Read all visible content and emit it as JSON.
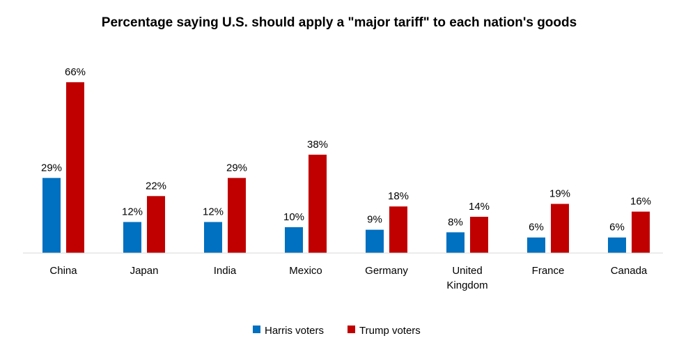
{
  "chart_data": {
    "type": "bar",
    "title": "Percentage saying U.S. should apply a \"major tariff\" to each nation's goods",
    "categories": [
      "China",
      "Japan",
      "India",
      "Mexico",
      "Germany",
      "United Kingdom",
      "France",
      "Canada"
    ],
    "category_lines": [
      [
        "China"
      ],
      [
        "Japan"
      ],
      [
        "India"
      ],
      [
        "Mexico"
      ],
      [
        "Germany"
      ],
      [
        "United",
        "Kingdom"
      ],
      [
        "France"
      ],
      [
        "Canada"
      ]
    ],
    "series": [
      {
        "name": "Harris voters",
        "color": "#0070C0",
        "values": [
          29,
          12,
          12,
          10,
          9,
          8,
          6,
          6
        ],
        "labels": [
          "29%",
          "12%",
          "12%",
          "10%",
          "9%",
          "8%",
          "6%",
          "6%"
        ]
      },
      {
        "name": "Trump voters",
        "color": "#C00000",
        "values": [
          66,
          22,
          29,
          38,
          18,
          14,
          19,
          16
        ],
        "labels": [
          "66%",
          "22%",
          "29%",
          "38%",
          "18%",
          "14%",
          "19%",
          "16%"
        ]
      }
    ],
    "ylim": [
      0,
      66
    ],
    "xlabel": "",
    "ylabel": "",
    "grid": false,
    "legend": "bottom"
  }
}
